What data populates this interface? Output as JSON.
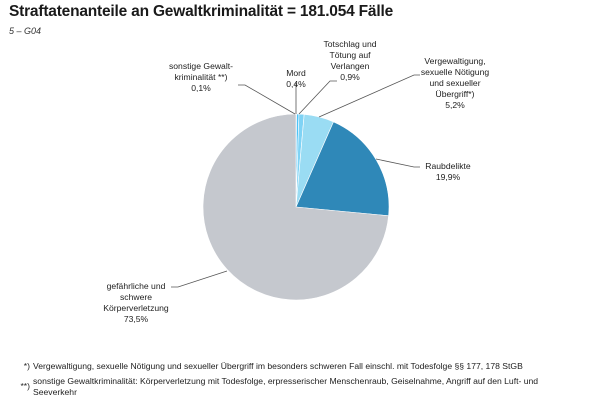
{
  "header": {
    "title": "Straftatenanteile an Gewaltkriminalität = 181.054 Fälle",
    "subtitle": "5 – G04"
  },
  "labels": {
    "sonstige": {
      "line1": "sonstige Gewalt-",
      "line2": "kriminalität **)",
      "value": "0,1%"
    },
    "mord": {
      "line1": "Mord",
      "value": "0,4%"
    },
    "totschlag": {
      "line1": "Totschlag und",
      "line2": "Tötung auf",
      "line3": "Verlangen",
      "value": "0,9%"
    },
    "vergewaltigung": {
      "line1": "Vergewaltigung,",
      "line2": "sexuelle Nötigung",
      "line3": "und sexueller",
      "line4": "Übergriff*)",
      "value": "5,2%"
    },
    "raub": {
      "line1": "Raubdelikte",
      "value": "19,9%"
    },
    "koerper": {
      "line1": "gefährliche und",
      "line2": "schwere",
      "line3": "Körperverletzung",
      "value": "73,5%"
    }
  },
  "footnotes": [
    {
      "mark": "*)",
      "text": "Vergewaltigung, sexuelle Nötigung und sexueller Übergriff im besonders schweren Fall einschl. mit Todesfolge §§ 177, 178 StGB"
    },
    {
      "mark": "**)",
      "text": "sonstige Gewaltkriminalität: Körperverletzung mit Todesfolge, erpresserischer Menschenraub, Geiselnahme, Angriff auf den Luft- und",
      "text2": "Seeverkehr"
    }
  ],
  "colors": {
    "sonstige": "#2a6f97",
    "mord": "#4fc3f7",
    "totschlag": "#7fd3f5",
    "vergewaltigung": "#9adcf3",
    "raub": "#2f88b8",
    "koerper": "#c5c8ce",
    "leader": "#555555"
  },
  "chart_data": {
    "type": "pie",
    "title": "Straftatenanteile an Gewaltkriminalität = 181.054 Fälle",
    "subtitle": "5 – G04",
    "total_cases": 181054,
    "start_angle": "12 o'clock, clockwise",
    "categories": [
      "sonstige Gewaltkriminalität **)",
      "Mord",
      "Totschlag und Tötung auf Verlangen",
      "Vergewaltigung, sexuelle Nötigung und sexueller Übergriff*)",
      "Raubdelikte",
      "gefährliche und schwere Körperverletzung"
    ],
    "values": [
      0.1,
      0.4,
      0.9,
      5.2,
      19.9,
      73.5
    ],
    "unit": "%",
    "legend": "none (direct labels with leader lines)"
  }
}
